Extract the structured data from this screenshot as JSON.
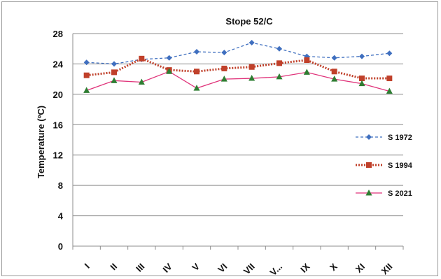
{
  "chart_data": {
    "type": "line",
    "title": "Stope 52/C",
    "ylabel": "Temperature (ºC)",
    "xlabel": "",
    "ylim": [
      0,
      28
    ],
    "yticks": [
      0,
      4,
      8,
      12,
      16,
      20,
      24,
      28
    ],
    "grid": "horizontal",
    "legend_position": "right",
    "categories": [
      "I",
      "II",
      "III",
      "IV",
      "V",
      "VI",
      "VII",
      "V...",
      "IX",
      "X",
      "XI",
      "XII"
    ],
    "series": [
      {
        "name": "S 1972",
        "color": "#3F6FBF",
        "style": "dashed",
        "marker": "diamond",
        "values": [
          24.2,
          24.0,
          24.6,
          24.8,
          25.6,
          25.5,
          26.8,
          26.0,
          25.0,
          24.8,
          25.0,
          25.4
        ]
      },
      {
        "name": "S 1994",
        "color": "#C0402A",
        "style": "dotted",
        "marker": "square",
        "values": [
          22.5,
          22.9,
          24.7,
          23.2,
          23.0,
          23.4,
          23.6,
          24.1,
          24.5,
          23.0,
          22.1,
          22.1
        ]
      },
      {
        "name": "S 2021",
        "color": "#E0337A",
        "style": "solid",
        "marker": "triangle",
        "marker_color": "#2E7D32",
        "values": [
          20.5,
          21.8,
          21.6,
          23.0,
          20.8,
          22.0,
          22.1,
          22.3,
          22.9,
          22.0,
          21.4,
          20.4
        ]
      }
    ]
  }
}
